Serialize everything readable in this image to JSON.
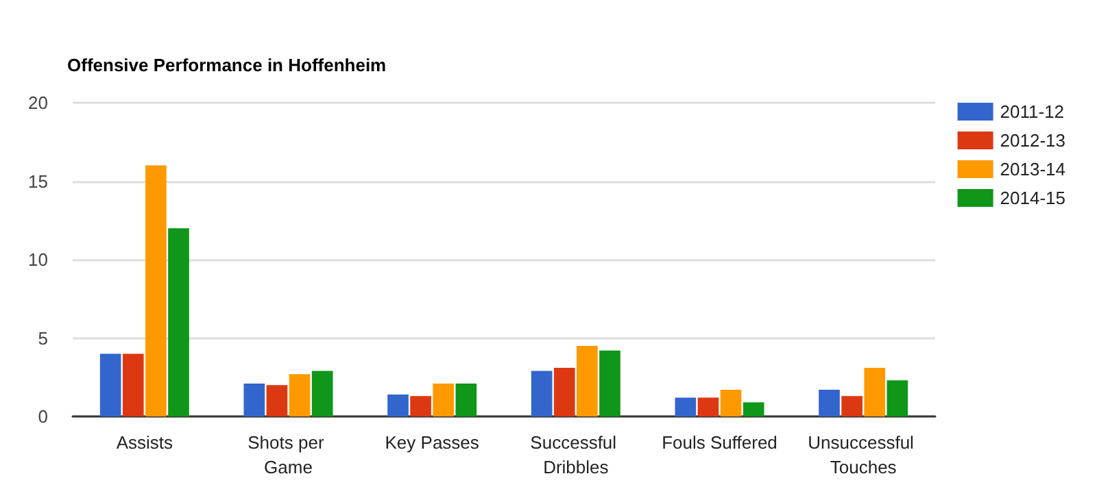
{
  "chart_data": {
    "type": "bar",
    "title": "Offensive Performance in Hoffenheim",
    "categories": [
      "Assists",
      "Shots per Game",
      "Key Passes",
      "Successful Dribbles",
      "Fouls Suffered",
      "Unsuccessful Touches"
    ],
    "series": [
      {
        "name": "2011-12",
        "color": "#3366cc",
        "values": [
          4,
          2.1,
          1.4,
          2.9,
          1.2,
          1.7
        ]
      },
      {
        "name": "2012-13",
        "color": "#dc3912",
        "values": [
          4,
          2.0,
          1.3,
          3.1,
          1.2,
          1.3
        ]
      },
      {
        "name": "2013-14",
        "color": "#ff9900",
        "values": [
          16,
          2.7,
          2.1,
          4.5,
          1.7,
          3.1
        ]
      },
      {
        "name": "2014-15",
        "color": "#109618",
        "values": [
          12,
          2.9,
          2.1,
          4.2,
          0.9,
          2.3
        ]
      }
    ],
    "ylim": [
      0,
      20
    ],
    "yticks": [
      0,
      5,
      10,
      15,
      20
    ],
    "grid": "y",
    "legend": "right"
  }
}
